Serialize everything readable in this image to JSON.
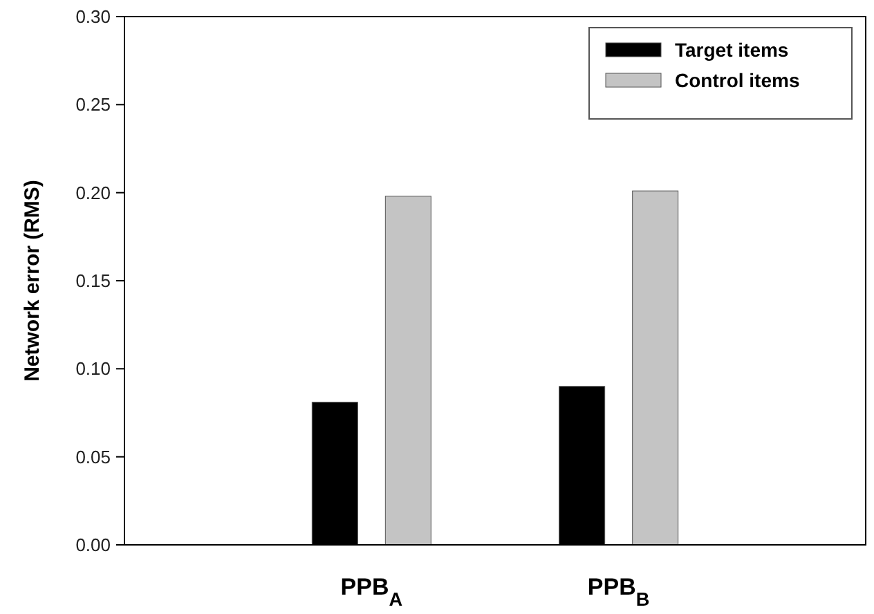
{
  "chart_data": {
    "type": "bar",
    "ylabel": "Network error (RMS)",
    "categories": [
      "PPB$_{A}$",
      "PPB$_{B}$"
    ],
    "series": [
      {
        "name": "Target items",
        "color": "#000000",
        "values": [
          0.081,
          0.09
        ]
      },
      {
        "name": "Control items",
        "color": "#c4c4c4",
        "values": [
          0.198,
          0.201
        ]
      }
    ],
    "ylim": [
      0,
      0.3
    ],
    "yticks": [
      {
        "value": 0,
        "label": "0.00"
      },
      {
        "value": 0.05,
        "label": "0.05"
      },
      {
        "value": 0.1,
        "label": "0.10"
      },
      {
        "value": 0.15,
        "label": "0.15"
      },
      {
        "value": 0.2,
        "label": "0.20"
      },
      {
        "value": 0.25,
        "label": "0.25"
      },
      {
        "value": 0.3,
        "label": "0.30"
      }
    ],
    "legend": "top right"
  }
}
